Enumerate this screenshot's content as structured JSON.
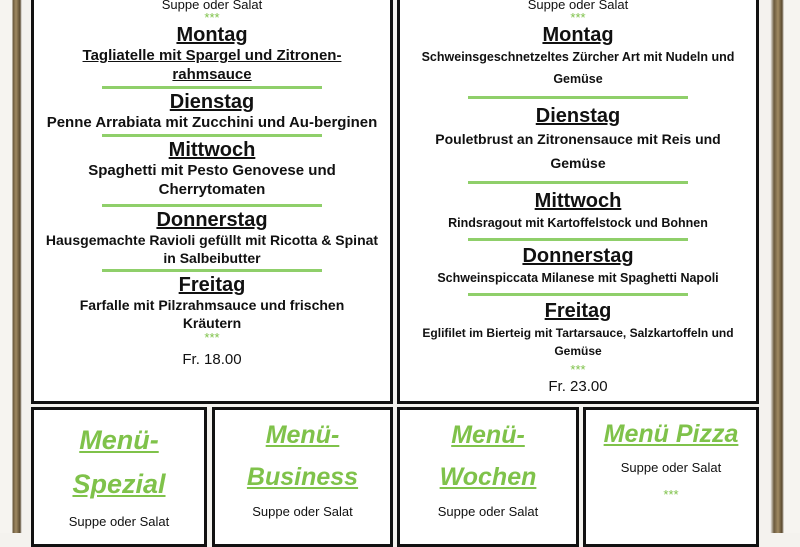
{
  "left_menu": {
    "soup": "Suppe oder Salat",
    "stars": "***",
    "days": [
      {
        "day": "Montag",
        "dish": "Tagliatelle mit Spargel und Zitronen-rahmsauce"
      },
      {
        "day": "Dienstag",
        "dish": "Penne Arrabiata mit Zucchini und Au-berginen"
      },
      {
        "day": "Mittwoch",
        "dish": "Spaghetti mit Pesto Genovese und Cherrytomaten"
      },
      {
        "day": "Donnerstag",
        "dish": "Hausgemachte Ravioli gefüllt mit Ricotta & Spinat in Salbeibutter"
      },
      {
        "day": "Freitag",
        "dish": "Farfalle mit Pilzrahmsauce und frischen Kräutern"
      }
    ],
    "price": "Fr. 18.00"
  },
  "right_menu": {
    "soup": "Suppe oder Salat",
    "stars": "***",
    "days": [
      {
        "day": "Montag",
        "dish": "Schweinsgeschnetzeltes Zürcher Art mit Nudeln und Gemüse"
      },
      {
        "day": "Dienstag",
        "dish": "Pouletbrust an Zitronensauce mit Reis und Gemüse"
      },
      {
        "day": "Mittwoch",
        "dish": "Rindsragout mit Kartoffelstock und Bohnen"
      },
      {
        "day": "Donnerstag",
        "dish": "Schweinspiccata Milanese mit Spaghetti Napoli"
      },
      {
        "day": "Freitag",
        "dish": "Eglifilet im Bierteig mit Tartarsauce, Salzkartoffeln und Gemüse"
      }
    ],
    "price": "Fr. 23.00"
  },
  "bottom": [
    {
      "title": "Menü-Spezial",
      "soup": "Suppe oder Salat"
    },
    {
      "title": "Menü-Business",
      "soup": "Suppe oder Salat"
    },
    {
      "title": "Menü-Wochen",
      "soup": "Suppe oder Salat"
    },
    {
      "title": "Menü Pizza",
      "soup": "Suppe oder Salat",
      "stars": "***"
    }
  ],
  "colors": {
    "accent_green": "#7fc24a",
    "frame_wood": "#6b5a3e"
  }
}
